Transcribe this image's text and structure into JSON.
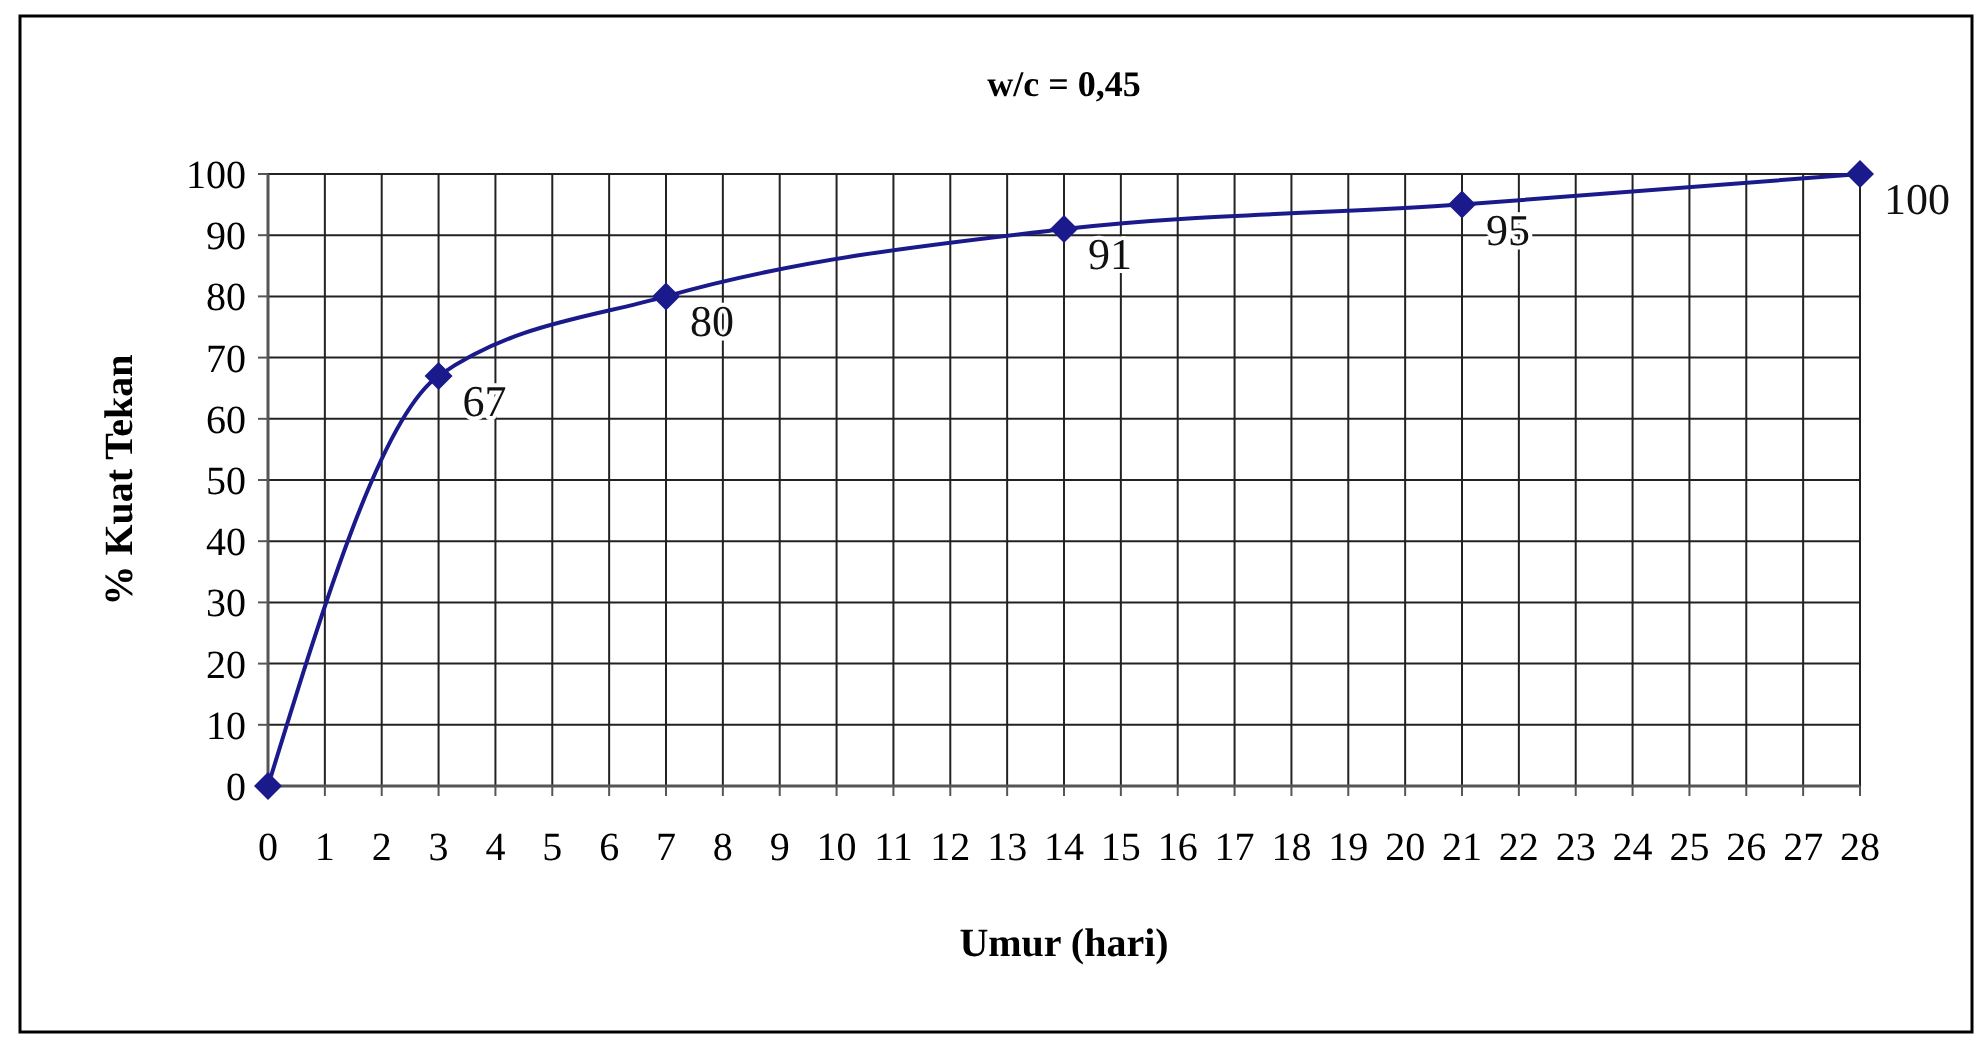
{
  "chart_data": {
    "type": "line",
    "title": "w/c = 0,45",
    "xlabel": "Umur (hari)",
    "ylabel": "% Kuat Tekan",
    "x": [
      0,
      3,
      7,
      14,
      21,
      28
    ],
    "series": [
      {
        "color": "#1a1a8c",
        "values": [
          0,
          67,
          80,
          91,
          95,
          100
        ],
        "value_labels": [
          null,
          "67",
          "80",
          "91",
          "95",
          "100"
        ]
      }
    ],
    "xlim": [
      0,
      28
    ],
    "xticks": [
      0,
      1,
      2,
      3,
      4,
      5,
      6,
      7,
      8,
      9,
      10,
      11,
      12,
      13,
      14,
      15,
      16,
      17,
      18,
      19,
      20,
      21,
      22,
      23,
      24,
      25,
      26,
      27,
      28
    ],
    "ylim": [
      0,
      100
    ],
    "yticks": [
      0,
      10,
      20,
      30,
      40,
      50,
      60,
      70,
      80,
      90,
      100
    ],
    "grid": true,
    "marker": "diamond",
    "line_style": "solid"
  }
}
